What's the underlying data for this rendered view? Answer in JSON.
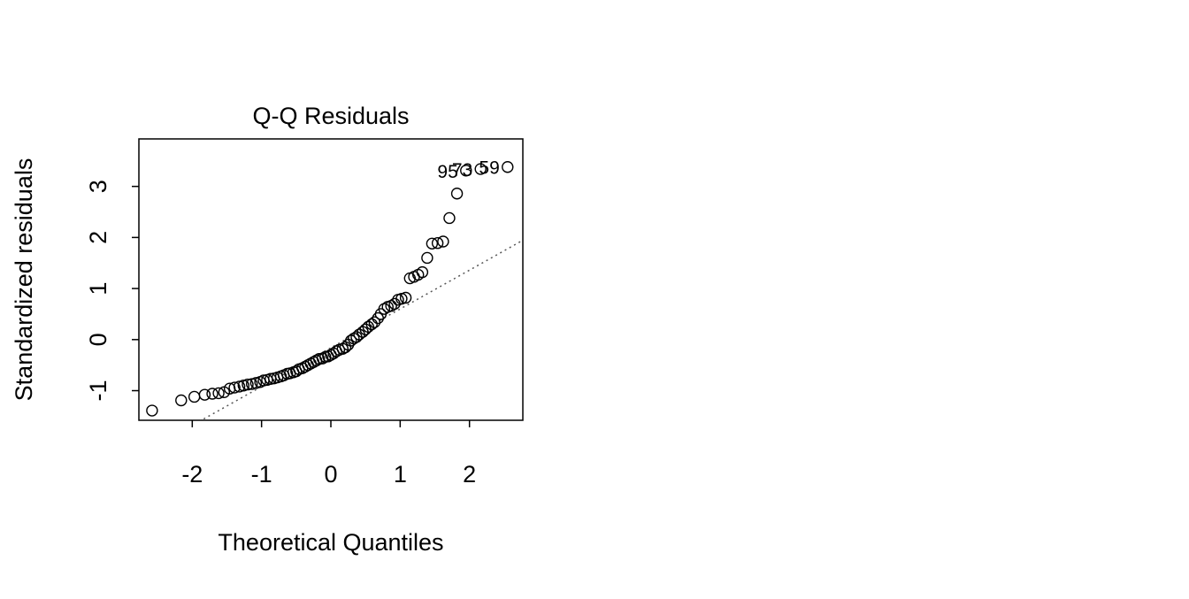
{
  "chart_data": {
    "type": "scatter",
    "title": "Q-Q Residuals",
    "x_label": "Theoretical Quantiles",
    "y_label": "Standardized residuals",
    "x": [
      -2.58,
      -2.16,
      -1.97,
      -1.82,
      -1.71,
      -1.62,
      -1.54,
      -1.46,
      -1.39,
      -1.32,
      -1.26,
      -1.2,
      -1.14,
      -1.08,
      -1.02,
      -0.97,
      -0.92,
      -0.87,
      -0.82,
      -0.77,
      -0.72,
      -0.68,
      -0.63,
      -0.59,
      -0.54,
      -0.5,
      -0.46,
      -0.41,
      -0.37,
      -0.33,
      -0.29,
      -0.25,
      -0.21,
      -0.17,
      -0.12,
      -0.08,
      -0.04,
      0,
      0.04,
      0.08,
      0.12,
      0.17,
      0.21,
      0.25,
      0.29,
      0.33,
      0.37,
      0.41,
      0.46,
      0.5,
      0.54,
      0.59,
      0.63,
      0.68,
      0.72,
      0.77,
      0.82,
      0.87,
      0.92,
      0.97,
      1.02,
      1.08,
      1.14,
      1.2,
      1.26,
      1.32,
      1.39,
      1.46,
      1.54,
      1.62,
      1.71,
      1.82,
      1.95,
      2.16,
      2.55
    ],
    "values": [
      -1.39,
      -1.19,
      -1.12,
      -1.08,
      -1.06,
      -1.05,
      -1.03,
      -0.96,
      -0.94,
      -0.92,
      -0.9,
      -0.88,
      -0.87,
      -0.85,
      -0.83,
      -0.8,
      -0.79,
      -0.77,
      -0.76,
      -0.74,
      -0.72,
      -0.7,
      -0.67,
      -0.66,
      -0.64,
      -0.62,
      -0.58,
      -0.56,
      -0.53,
      -0.5,
      -0.47,
      -0.44,
      -0.41,
      -0.38,
      -0.37,
      -0.34,
      -0.33,
      -0.3,
      -0.27,
      -0.23,
      -0.2,
      -0.18,
      -0.15,
      -0.1,
      -0.02,
      0.02,
      0.05,
      0.1,
      0.15,
      0.2,
      0.25,
      0.3,
      0.34,
      0.42,
      0.5,
      0.6,
      0.64,
      0.66,
      0.7,
      0.78,
      0.8,
      0.82,
      1.2,
      1.23,
      1.27,
      1.32,
      1.6,
      1.88,
      1.89,
      1.92,
      2.38,
      2.86,
      3.31,
      3.34,
      3.38
    ],
    "point_labels": [
      null,
      null,
      null,
      null,
      null,
      null,
      null,
      null,
      null,
      null,
      null,
      null,
      null,
      null,
      null,
      null,
      null,
      null,
      null,
      null,
      null,
      null,
      null,
      null,
      null,
      null,
      null,
      null,
      null,
      null,
      null,
      null,
      null,
      null,
      null,
      null,
      null,
      null,
      null,
      null,
      null,
      null,
      null,
      null,
      null,
      null,
      null,
      null,
      null,
      null,
      null,
      null,
      null,
      null,
      null,
      null,
      null,
      null,
      null,
      null,
      null,
      null,
      null,
      null,
      null,
      null,
      null,
      null,
      null,
      null,
      null,
      null,
      "95",
      "73",
      "59"
    ],
    "ref_line": {
      "intercept": -0.16,
      "slope": 0.76
    },
    "xlim": [
      -2.77,
      2.77
    ],
    "ylim": [
      -1.58,
      3.93
    ],
    "xticks": [
      -2,
      -1,
      0,
      1,
      2
    ],
    "yticks": [
      -1,
      0,
      1,
      2,
      3
    ]
  }
}
